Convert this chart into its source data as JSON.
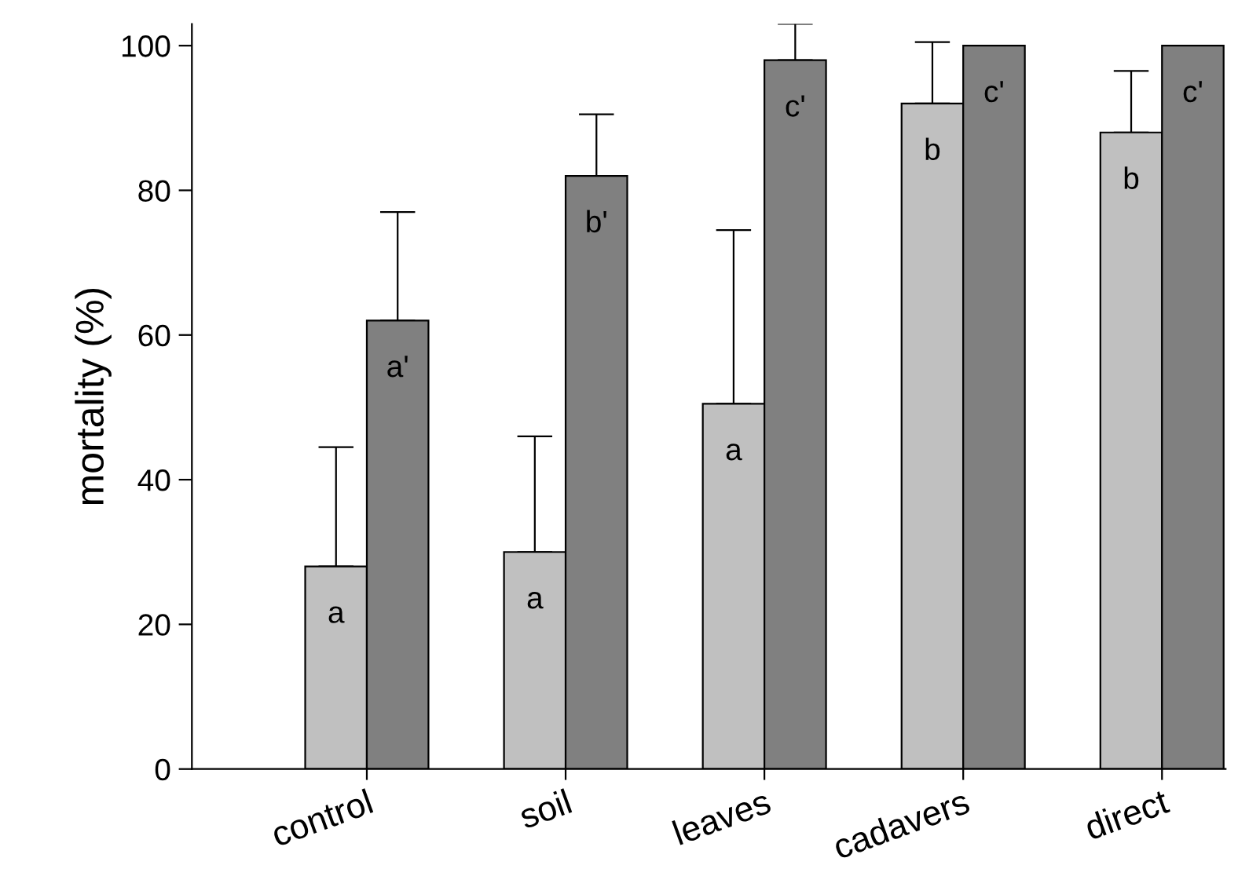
{
  "chart_data": {
    "type": "bar",
    "ylabel": "mortality (%)",
    "categories": [
      "control",
      "soil",
      "leaves",
      "cadavers",
      "direct"
    ],
    "series": [
      {
        "color": "#c0c0c0",
        "values": [
          28,
          30,
          50.5,
          92,
          88
        ],
        "errors": [
          [
            28,
            44.5
          ],
          [
            30,
            46
          ],
          [
            50.5,
            74.5
          ],
          [
            92,
            100.5
          ],
          [
            88,
            96.5
          ]
        ],
        "value_labels": [
          "a",
          "a",
          "a",
          "b",
          "b"
        ]
      },
      {
        "color": "#808080",
        "values": [
          62,
          82,
          98,
          100,
          100
        ],
        "errors": [
          [
            62,
            77
          ],
          [
            82,
            90.5
          ],
          [
            98,
            103
          ],
          null,
          null
        ],
        "value_labels": [
          "a'",
          "b'",
          "c'",
          "c'",
          "c'"
        ]
      }
    ],
    "ylim": [
      0,
      103
    ],
    "yticks": [
      0,
      20,
      40,
      60,
      80,
      100
    ],
    "grid": false,
    "legend": false
  }
}
